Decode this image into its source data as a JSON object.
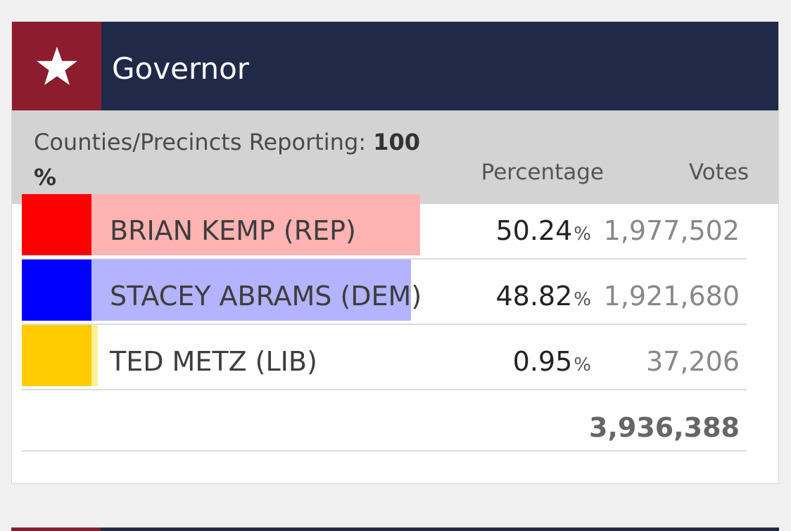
{
  "race": {
    "title": "Governor",
    "icon": "star-icon",
    "header_color": "#202a48",
    "icon_box_color": "#8c1c2e"
  },
  "subheader": {
    "reporting_label": "Counties/Precincts Reporting:",
    "reporting_value": "100",
    "reporting_unit": "%",
    "col_percentage": "Percentage",
    "col_votes": "Votes"
  },
  "candidates": [
    {
      "name": "BRIAN KEMP (REP)",
      "percentage": "50.24",
      "votes": "1,977,502",
      "share": 0.5024,
      "swatch_color": "#ff0000",
      "bar_color": "#ffb3b3"
    },
    {
      "name": "STACEY ABRAMS (DEM)",
      "percentage": "48.82",
      "votes": "1,921,680",
      "share": 0.4882,
      "swatch_color": "#0000ff",
      "bar_color": "#b3b3ff"
    },
    {
      "name": "TED METZ (LIB)",
      "percentage": "0.95",
      "votes": "37,206",
      "share": 0.0095,
      "swatch_color": "#ffcc00",
      "bar_color": "#ffef99"
    }
  ],
  "percent_sign": "%",
  "total_votes": "3,936,388"
}
